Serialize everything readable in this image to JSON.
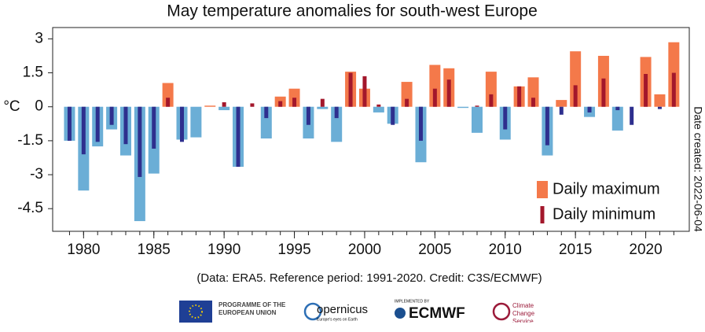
{
  "chart_data": {
    "type": "bar",
    "title": "May temperature anomalies  for south-west Europe",
    "y_label": "°C",
    "side_note": "Date created: 2022-06-04",
    "source": "(Data: ERA5.  Reference period: 1991-2020.  Credit: C3S/ECMWF)",
    "x": [
      1979,
      1980,
      1981,
      1982,
      1983,
      1984,
      1985,
      1986,
      1987,
      1988,
      1989,
      1990,
      1991,
      1992,
      1993,
      1994,
      1995,
      1996,
      1997,
      1998,
      1999,
      2000,
      2001,
      2002,
      2003,
      2004,
      2005,
      2006,
      2007,
      2008,
      2009,
      2010,
      2011,
      2012,
      2013,
      2014,
      2015,
      2016,
      2017,
      2018,
      2019,
      2020,
      2021,
      2022
    ],
    "series": [
      {
        "name": "Daily maximum",
        "color": "#f4794a",
        "negative_color": "#6baed6",
        "values": [
          -1.5,
          -3.7,
          -1.75,
          -1.0,
          -2.15,
          -5.05,
          -2.95,
          1.05,
          -1.45,
          -1.35,
          0.05,
          -0.15,
          -2.65,
          0.0,
          -1.4,
          0.45,
          0.8,
          -1.4,
          -0.1,
          -1.55,
          1.55,
          0.8,
          -0.25,
          -0.75,
          1.1,
          -2.45,
          1.85,
          1.7,
          -0.05,
          -1.15,
          1.55,
          -1.45,
          0.9,
          1.3,
          -2.15,
          0.3,
          2.45,
          -0.45,
          2.25,
          -1.05,
          0.0,
          2.2,
          0.55,
          2.85
        ]
      },
      {
        "name": "Daily minimum",
        "color": "#a3172b",
        "negative_color": "#2e2f8e",
        "values": [
          -1.5,
          -2.1,
          -1.55,
          -0.8,
          -1.65,
          -3.1,
          -1.85,
          0.4,
          -1.55,
          0.0,
          0.0,
          0.2,
          -2.65,
          0.15,
          -0.5,
          0.25,
          0.4,
          -0.8,
          0.35,
          -0.5,
          1.5,
          1.35,
          0.1,
          -0.8,
          0.35,
          -1.5,
          0.8,
          1.2,
          0.0,
          0.05,
          0.55,
          -1.0,
          0.9,
          0.4,
          -1.7,
          -0.35,
          0.95,
          -0.25,
          1.25,
          -0.15,
          -0.8,
          1.45,
          -0.1,
          1.5
        ]
      }
    ],
    "xlim": [
      1977.8,
      2023.1
    ],
    "xticks": [
      1980,
      1985,
      1990,
      1995,
      2000,
      2005,
      2010,
      2015,
      2020
    ],
    "ylim": [
      -5.5,
      3.5
    ],
    "yticks": [
      3,
      1.5,
      0,
      -1.5,
      -3,
      -4.5
    ],
    "legend": "lower right"
  },
  "logos": {
    "eu": "PROGRAMME OF THE EUROPEAN UNION",
    "copernicus": "opernicus",
    "copernicus_tagline": "Europe's eyes on Earth",
    "ecmwf_tag": "IMPLEMENTED BY",
    "ecmwf": "ECMWF",
    "c3s": "Climate Change Service"
  }
}
